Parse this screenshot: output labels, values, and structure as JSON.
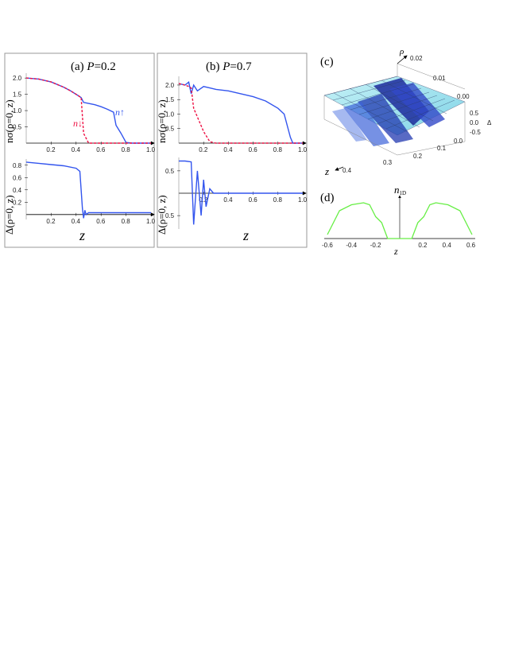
{
  "panels": {
    "a": {
      "label": "(a) ",
      "p_label": "P",
      "p_value": "=0.2"
    },
    "b": {
      "label": "(b) ",
      "p_label": "P",
      "p_value": "=0.7"
    },
    "c": {
      "label": "(c)"
    },
    "d": {
      "label": "(d)"
    }
  },
  "labels": {
    "n_axis": "nσ(ρ=0, z)",
    "delta_axis": "Δ(ρ=0, z)",
    "z": "z",
    "n_up": "n↑",
    "n_down": "n↓",
    "rho": "ρ",
    "delta3d": "Δ",
    "n1d": "n",
    "n1d_sub": "1D"
  },
  "colors": {
    "up": "#3355ee",
    "down": "#ee1144",
    "green": "#66ee44",
    "frame": "#999999"
  },
  "chart_data": [
    {
      "id": "a-top",
      "type": "line",
      "x": [
        0,
        0.1,
        0.2,
        0.3,
        0.35,
        0.4,
        0.44,
        0.46,
        0.5,
        0.55,
        0.6,
        0.65,
        0.7,
        0.72,
        0.76,
        0.8,
        0.85,
        1.0
      ],
      "series": [
        {
          "name": "n↑",
          "values": [
            2.0,
            1.97,
            1.88,
            1.72,
            1.62,
            1.5,
            1.4,
            1.25,
            1.22,
            1.18,
            1.12,
            1.04,
            0.95,
            0.55,
            0.3,
            0.02,
            0.0,
            0.0
          ]
        },
        {
          "name": "n↓",
          "values": [
            2.0,
            1.97,
            1.88,
            1.72,
            1.62,
            1.5,
            1.4,
            0.3,
            0.0,
            0.0,
            0.0,
            0.0,
            0.0,
            0.0,
            0.0,
            0.0,
            0.0,
            0.0
          ]
        }
      ],
      "xticks": [
        "0.2",
        "0.4",
        "0.6",
        "0.8",
        "1.0"
      ],
      "yticks": [
        "0.5",
        "1.0",
        "1.5",
        "2.0"
      ],
      "xlim": [
        0,
        1.0
      ],
      "ylim": [
        0,
        2.15
      ]
    },
    {
      "id": "a-bottom",
      "type": "line",
      "x": [
        0,
        0.05,
        0.1,
        0.2,
        0.3,
        0.4,
        0.43,
        0.45,
        0.46,
        0.47,
        0.48,
        0.5,
        0.55,
        1.0
      ],
      "series": [
        {
          "name": "Δ",
          "values": [
            0.85,
            0.84,
            0.83,
            0.81,
            0.79,
            0.75,
            0.7,
            0.1,
            -0.06,
            0.07,
            0.0,
            0.03,
            0.03,
            0.03
          ]
        }
      ],
      "xticks": [
        "0.2",
        "0.4",
        "0.6",
        "0.8",
        "1.0"
      ],
      "yticks": [
        "0.2",
        "0.4",
        "0.6",
        "0.8"
      ],
      "xlim": [
        0,
        1.0
      ],
      "ylim": [
        -0.08,
        0.9
      ]
    },
    {
      "id": "b-top",
      "type": "line",
      "x": [
        0,
        0.05,
        0.08,
        0.1,
        0.12,
        0.15,
        0.2,
        0.25,
        0.3,
        0.4,
        0.5,
        0.6,
        0.7,
        0.8,
        0.85,
        0.9,
        0.92,
        1.0
      ],
      "series": [
        {
          "name": "n↑",
          "values": [
            2.05,
            2.0,
            2.1,
            1.7,
            2.0,
            1.8,
            1.95,
            1.9,
            1.85,
            1.8,
            1.7,
            1.6,
            1.45,
            1.2,
            1.0,
            0.2,
            0.0,
            0.0
          ]
        },
        {
          "name": "n↓",
          "values": [
            2.05,
            2.0,
            1.95,
            1.9,
            1.2,
            0.9,
            0.4,
            0.05,
            0.0,
            0.0,
            0.0,
            0.0,
            0.0,
            0.0,
            0.0,
            0.0,
            0.0,
            0.0
          ]
        }
      ],
      "xticks": [
        "0.2",
        "0.4",
        "0.6",
        "0.8",
        "1.0"
      ],
      "yticks": [
        "0.5",
        "1.0",
        "1.5",
        "2.0"
      ],
      "xlim": [
        0,
        1.0
      ],
      "ylim": [
        0,
        2.3
      ]
    },
    {
      "id": "b-bottom",
      "type": "line",
      "x": [
        0,
        0.05,
        0.1,
        0.12,
        0.15,
        0.18,
        0.2,
        0.22,
        0.25,
        0.28,
        0.3,
        1.0
      ],
      "series": [
        {
          "name": "Δ",
          "values": [
            0.72,
            0.72,
            0.7,
            -0.7,
            0.5,
            -0.5,
            0.3,
            -0.3,
            0.1,
            0.0,
            0.0,
            0.0
          ]
        }
      ],
      "xticks": [
        "0.2",
        "0.4",
        "0.6",
        "0.8",
        "1.0"
      ],
      "yticks": [
        "0.5",
        "0.5"
      ],
      "xlim": [
        0,
        1.0
      ],
      "ylim": [
        -0.8,
        0.8
      ]
    },
    {
      "id": "c",
      "type": "surface",
      "rho_ticks": [
        "0.02",
        "0.01",
        "0.00"
      ],
      "z_ticks": [
        "0.4",
        "0.3",
        "0.2",
        "0.1",
        "0.0"
      ],
      "delta_ticks": [
        "0.5",
        "0.0",
        "-0.5"
      ]
    },
    {
      "id": "d",
      "type": "line",
      "x": [
        -0.6,
        -0.55,
        -0.5,
        -0.4,
        -0.3,
        -0.25,
        -0.2,
        -0.15,
        -0.1,
        -0.05,
        0,
        0.05,
        0.1,
        0.15,
        0.2,
        0.25,
        0.3,
        0.4,
        0.5,
        0.55,
        0.6
      ],
      "series": [
        {
          "name": "n1D",
          "values": [
            0.1,
            0.4,
            0.7,
            0.85,
            0.9,
            0.85,
            0.55,
            0.4,
            0.0,
            0.0,
            0.0,
            0.0,
            0.0,
            0.4,
            0.55,
            0.85,
            0.9,
            0.85,
            0.7,
            0.4,
            0.1
          ]
        }
      ],
      "xticks": [
        "-0.6",
        "-0.4",
        "-0.2",
        "0.2",
        "0.4",
        "0.6"
      ],
      "xlim": [
        -0.6,
        0.6
      ]
    }
  ]
}
